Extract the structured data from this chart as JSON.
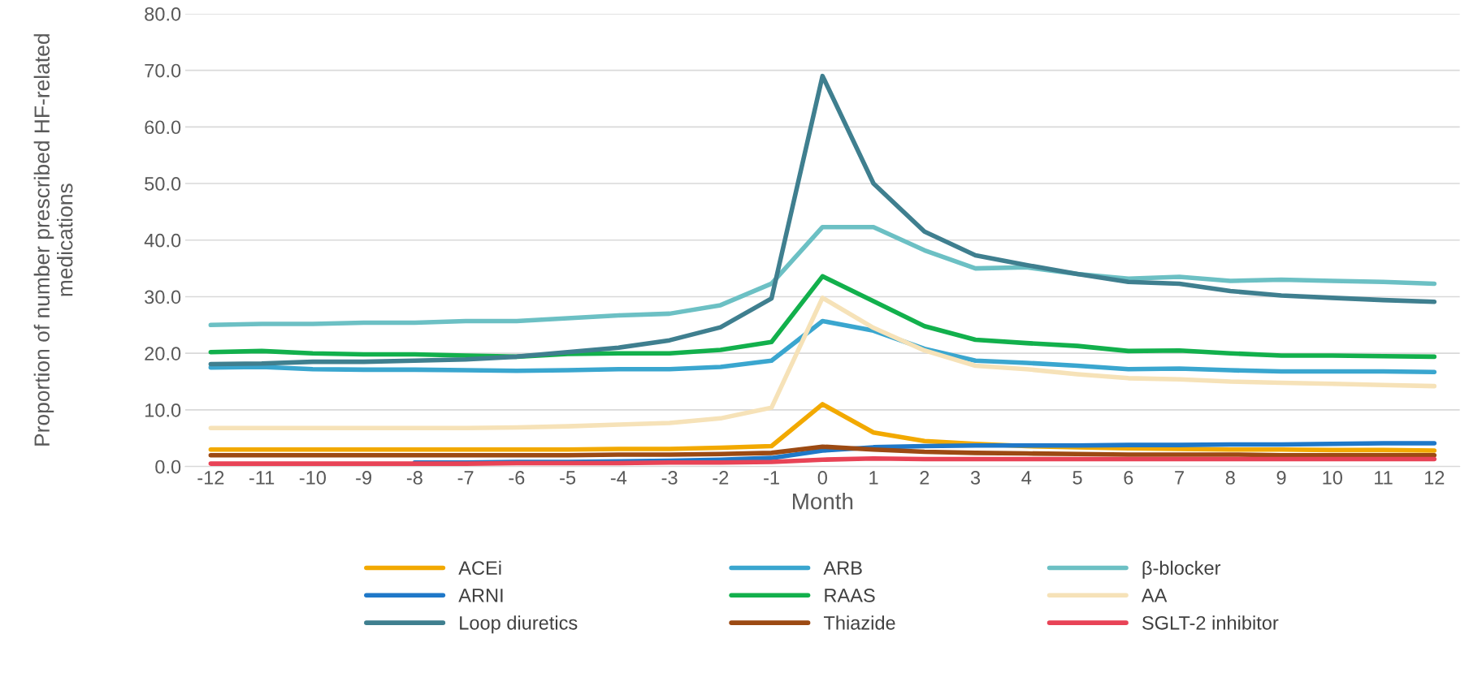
{
  "chart_data": {
    "type": "line",
    "xlabel": "Month",
    "ylabel": "Proportion of number prescribed HF-related medications",
    "x": [
      -12,
      -11,
      -10,
      -9,
      -8,
      -7,
      -6,
      -5,
      -4,
      -3,
      -2,
      -1,
      0,
      1,
      2,
      3,
      4,
      5,
      6,
      7,
      8,
      9,
      10,
      11,
      12
    ],
    "xlim": [
      -12.5,
      12.5
    ],
    "xticks": [
      -12,
      -11,
      -10,
      -9,
      -8,
      -7,
      -6,
      -5,
      -4,
      -3,
      -2,
      -1,
      0,
      1,
      2,
      3,
      4,
      5,
      6,
      7,
      8,
      9,
      10,
      11,
      12
    ],
    "ylim": [
      0,
      80
    ],
    "yticks": [
      {
        "value": 0,
        "label": "0.0"
      },
      {
        "value": 10,
        "label": "10.0"
      },
      {
        "value": 20,
        "label": "20.0"
      },
      {
        "value": 30,
        "label": "30.0"
      },
      {
        "value": 40,
        "label": "40.0"
      },
      {
        "value": 50,
        "label": "50.0"
      },
      {
        "value": 60,
        "label": "60.0"
      },
      {
        "value": 70,
        "label": "70.0"
      },
      {
        "value": 80,
        "label": "80.0"
      }
    ],
    "grid": "y",
    "legend": "bottom",
    "marker": "none",
    "line_style": "solid",
    "series": [
      {
        "name": "ACEi",
        "color": "#f2a900",
        "values": [
          3.0,
          3.0,
          3.0,
          3.0,
          3.0,
          3.0,
          3.0,
          3.0,
          3.1,
          3.1,
          3.3,
          3.6,
          11.0,
          6.0,
          4.5,
          4.0,
          3.6,
          3.4,
          3.2,
          3.1,
          3.0,
          3.0,
          2.9,
          2.9,
          2.8
        ]
      },
      {
        "name": "ARB",
        "color": "#3aa6cf",
        "values": [
          17.5,
          17.6,
          17.2,
          17.1,
          17.1,
          17.0,
          16.9,
          17.0,
          17.2,
          17.2,
          17.6,
          18.7,
          25.7,
          24.0,
          20.8,
          18.7,
          18.3,
          17.8,
          17.2,
          17.3,
          17.0,
          16.8,
          16.8,
          16.8,
          16.7
        ]
      },
      {
        "name": "β-blocker",
        "color": "#6cc0c4",
        "values": [
          25.0,
          25.2,
          25.2,
          25.4,
          25.4,
          25.7,
          25.7,
          26.2,
          26.7,
          27.0,
          28.5,
          32.3,
          42.3,
          42.3,
          38.2,
          35.0,
          35.2,
          34.0,
          33.2,
          33.5,
          32.8,
          33.0,
          32.8,
          32.6,
          32.3
        ]
      },
      {
        "name": "ARNI",
        "color": "#1f78c8",
        "values": [
          null,
          null,
          null,
          null,
          0.7,
          0.7,
          0.8,
          0.8,
          0.9,
          1.0,
          1.2,
          1.5,
          2.8,
          3.4,
          3.6,
          3.7,
          3.7,
          3.7,
          3.8,
          3.8,
          3.9,
          3.9,
          4.0,
          4.1,
          4.1
        ]
      },
      {
        "name": "RAAS",
        "color": "#12b04c",
        "values": [
          20.2,
          20.4,
          20.0,
          19.8,
          19.8,
          19.6,
          19.4,
          19.9,
          20.0,
          20.0,
          20.6,
          22.0,
          33.6,
          29.2,
          24.8,
          22.4,
          21.8,
          21.3,
          20.4,
          20.5,
          20.0,
          19.6,
          19.6,
          19.5,
          19.4
        ]
      },
      {
        "name": "AA",
        "color": "#f6e2b8",
        "values": [
          6.8,
          6.8,
          6.8,
          6.8,
          6.8,
          6.8,
          6.9,
          7.1,
          7.4,
          7.7,
          8.5,
          10.4,
          29.8,
          24.5,
          20.5,
          17.8,
          17.2,
          16.3,
          15.6,
          15.4,
          15.0,
          14.8,
          14.6,
          14.4,
          14.2
        ]
      },
      {
        "name": "Loop diuretics",
        "color": "#3f7f8f",
        "values": [
          18.1,
          18.2,
          18.5,
          18.5,
          18.7,
          18.9,
          19.4,
          20.2,
          21.0,
          22.3,
          24.6,
          29.7,
          69.0,
          50.0,
          41.5,
          37.3,
          35.6,
          34.0,
          32.6,
          32.3,
          31.0,
          30.2,
          29.8,
          29.4,
          29.1
        ]
      },
      {
        "name": "Thiazide",
        "color": "#9c4a13",
        "values": [
          2.0,
          2.0,
          2.0,
          2.0,
          2.0,
          2.0,
          2.0,
          2.0,
          2.1,
          2.1,
          2.2,
          2.4,
          3.5,
          3.0,
          2.6,
          2.4,
          2.3,
          2.2,
          2.1,
          2.1,
          2.1,
          2.0,
          2.0,
          2.0,
          2.0
        ]
      },
      {
        "name": "SGLT-2 inhibitor",
        "color": "#e84356",
        "values": [
          0.5,
          0.5,
          0.5,
          0.5,
          0.5,
          0.5,
          0.6,
          0.6,
          0.6,
          0.7,
          0.7,
          0.8,
          1.2,
          1.4,
          1.3,
          1.3,
          1.3,
          1.3,
          1.3,
          1.3,
          1.3,
          1.3,
          1.3,
          1.3,
          1.3
        ]
      }
    ]
  }
}
